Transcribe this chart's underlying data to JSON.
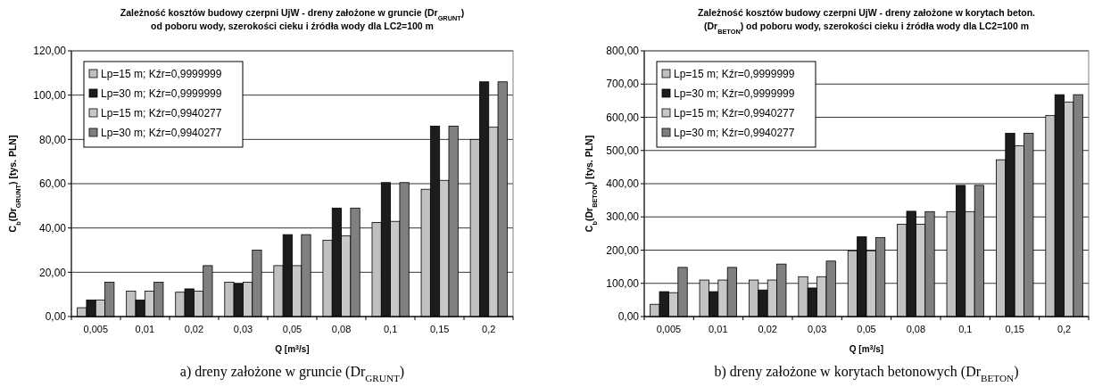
{
  "chart_data": [
    {
      "type": "bar",
      "title": "Zależność kosztów budowy czerpni UjW - dreny założone w gruncie (Dr$_{GRUNT}$)",
      "subtitle": "od poboru wody, szerokości cieku i źródła wody dla LC2=100 m",
      "xlabel": "Q [m$^{3}$/s]",
      "ylabel": "C$_{b}$(Dr$_{GRUNT}$) [tys. PLN]",
      "annotations": [
        "a)  dreny założone w gruncie (Dr$_{GRUNT}$)"
      ],
      "categories": [
        "0,005",
        "0,01",
        "0,02",
        "0,03",
        "0,05",
        "0,08",
        "0,1",
        "0,15",
        "0,2"
      ],
      "series": [
        {
          "name": "Lp=15 m; Kźr=0,9999999",
          "color": "#c0c0c0",
          "values": [
            4,
            11.5,
            11,
            15.5,
            23,
            34.5,
            42.5,
            57.5,
            80
          ]
        },
        {
          "name": "Lp=30 m; Kźr=0,9999999",
          "color": "#1c1c1c",
          "values": [
            7.5,
            7.5,
            12.5,
            15,
            37,
            49,
            60.5,
            86,
            106
          ]
        },
        {
          "name": "Lp=15 m; Kźr=0,9940277",
          "color": "#c8c8c8",
          "values": [
            7.5,
            11.5,
            11.5,
            15.5,
            23,
            36.5,
            43,
            61.5,
            85.5
          ]
        },
        {
          "name": "Lp=30 m; Kźr=0,9940277",
          "color": "#808080",
          "values": [
            15.5,
            15.5,
            23,
            30,
            37,
            49,
            60.5,
            86,
            106
          ]
        }
      ],
      "ylim": [
        0,
        120
      ],
      "yticks": [
        {
          "value": 0,
          "label": "0,00"
        },
        {
          "value": 20,
          "label": "20,00"
        },
        {
          "value": 40,
          "label": "40,00"
        },
        {
          "value": 60,
          "label": "60,00"
        },
        {
          "value": 80,
          "label": "80,00"
        },
        {
          "value": 100,
          "label": "100,00"
        },
        {
          "value": 120,
          "label": "120,00"
        }
      ],
      "grid": "y",
      "legend": "top left"
    },
    {
      "type": "bar",
      "title": "Zależność kosztów budowy czerpni UjW - dreny założone w korytach beton.",
      "subtitle": "(Dr$_{BETON}$) od poboru wody, szerokości cieku i źródła wody dla LC2=100 m",
      "xlabel": "Q [m$^{3}$/s]",
      "ylabel": "C$_{b}$(Dr$_{BETON}$) [tys. PLN]",
      "annotations": [
        "b) dreny założone w korytach betonowych (Dr$_{BETON}$)"
      ],
      "categories": [
        "0,005",
        "0,01",
        "0,02",
        "0,03",
        "0,05",
        "0,08",
        "0,1",
        "0,15",
        "0,2"
      ],
      "series": [
        {
          "name": "Lp=15 m; Kźr=0,9999999",
          "color": "#c0c0c0",
          "values": [
            37,
            110,
            110,
            120,
            198,
            278,
            316,
            472,
            605
          ]
        },
        {
          "name": "Lp=30 m; Kźr=0,9999999",
          "color": "#1c1c1c",
          "values": [
            75,
            75,
            80,
            86,
            240,
            317,
            395,
            552,
            668
          ]
        },
        {
          "name": "Lp=15 m; Kźr=0,9940277",
          "color": "#c8c8c8",
          "values": [
            72,
            110,
            110,
            120,
            198,
            278,
            316,
            514,
            646
          ]
        },
        {
          "name": "Lp=30 m; Kźr=0,9940277",
          "color": "#808080",
          "values": [
            148,
            148,
            158,
            167,
            238,
            316,
            395,
            552,
            668
          ]
        }
      ],
      "ylim": [
        0,
        800
      ],
      "yticks": [
        {
          "value": 0,
          "label": "0,00"
        },
        {
          "value": 100,
          "label": "100,00"
        },
        {
          "value": 200,
          "label": "200,00"
        },
        {
          "value": 300,
          "label": "300,00"
        },
        {
          "value": 400,
          "label": "400,00"
        },
        {
          "value": 500,
          "label": "500,00"
        },
        {
          "value": 600,
          "label": "600,00"
        },
        {
          "value": 700,
          "label": "700,00"
        },
        {
          "value": 800,
          "label": "800,00"
        }
      ],
      "grid": "y",
      "legend": "top left"
    }
  ]
}
